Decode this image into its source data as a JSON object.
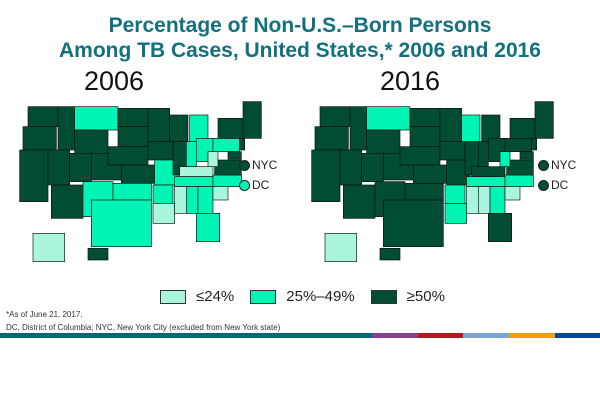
{
  "title": {
    "line1": "Percentage of Non-U.S.–Born Persons",
    "line2": "Among TB Cases, United States,* 2006 and 2016"
  },
  "colors": {
    "low": "#aaf5dd",
    "mid": "#00f5b4",
    "high": "#004d33",
    "title": "#12707f"
  },
  "legend": [
    {
      "key": "low",
      "label": "≤24%"
    },
    {
      "key": "mid",
      "label": "25%–49%"
    },
    {
      "key": "high",
      "label": "≥50%"
    }
  ],
  "maps": [
    {
      "year": "2006",
      "nyc_label": "NYC",
      "dc_label": "DC",
      "nyc": "high",
      "dc": "mid",
      "states": {
        "WA": "high",
        "OR": "high",
        "CA": "high",
        "ID": "high",
        "NV": "high",
        "MT": "mid",
        "WY": "high",
        "UT": "high",
        "AZ": "high",
        "CO": "high",
        "NM": "mid",
        "ND": "high",
        "SD": "high",
        "NE": "high",
        "KS": "high",
        "OK": "mid",
        "TX": "mid",
        "MN": "high",
        "IA": "high",
        "MO": "mid",
        "AR": "mid",
        "LA": "low",
        "WI": "high",
        "IL": "high",
        "MI": "mid",
        "IN": "mid",
        "OH": "mid",
        "KY": "low",
        "TN": "mid",
        "MS": "low",
        "AL": "mid",
        "GA": "mid",
        "FL": "mid",
        "SC": "low",
        "NC": "mid",
        "VA": "high",
        "WV": "low",
        "PA": "mid",
        "NY": "high",
        "NE_US": "high",
        "NJ": "high",
        "MD": "high",
        "AK": "low",
        "HI": "high"
      }
    },
    {
      "year": "2016",
      "nyc_label": "NYC",
      "dc_label": "DC",
      "nyc": "high",
      "dc": "high",
      "states": {
        "WA": "high",
        "OR": "high",
        "CA": "high",
        "ID": "high",
        "NV": "high",
        "MT": "mid",
        "WY": "high",
        "UT": "high",
        "AZ": "high",
        "CO": "high",
        "NM": "high",
        "ND": "high",
        "SD": "high",
        "NE": "high",
        "KS": "high",
        "OK": "high",
        "TX": "high",
        "MN": "high",
        "IA": "high",
        "MO": "high",
        "AR": "mid",
        "LA": "mid",
        "WI": "mid",
        "IL": "high",
        "MI": "high",
        "IN": "high",
        "OH": "high",
        "KY": "high",
        "TN": "mid",
        "MS": "low",
        "AL": "low",
        "GA": "mid",
        "FL": "high",
        "SC": "low",
        "NC": "mid",
        "VA": "high",
        "WV": "mid",
        "PA": "high",
        "NY": "high",
        "NE_US": "high",
        "NJ": "high",
        "MD": "high",
        "AK": "low",
        "HI": "high"
      }
    }
  ],
  "footnotes": {
    "asof": "*As of June 21, 2017.",
    "abbrev": "DC, District of Columbia; NYC, New York City (excluded from New York state)"
  },
  "bottom_bar_colors": [
    "#006a74",
    "#8a3d8f",
    "#b01c1c",
    "#7aa6d6",
    "#f39c12",
    "#0047a0"
  ]
}
